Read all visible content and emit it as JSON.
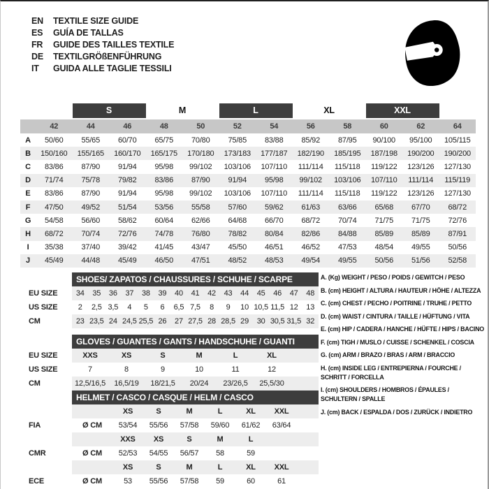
{
  "colors": {
    "dark": "#3d3d3d",
    "band": "#c7c7c7",
    "shade": "#ededed"
  },
  "header": {
    "languages": [
      {
        "code": "EN",
        "title": "TEXTILE SIZE GUIDE"
      },
      {
        "code": "ES",
        "title": "GUÍA DE TALLAS"
      },
      {
        "code": "FR",
        "title": "GUIDE DES TAILLES TEXTILE"
      },
      {
        "code": "DE",
        "title": "TEXTILGRÖßENFÜHRUNG"
      },
      {
        "code": "IT",
        "title": "GUIDA ALLE TAGLIE TESSILI"
      }
    ],
    "icon": "racing-helmet-icon"
  },
  "main_size_table": {
    "groups": [
      {
        "label": "S",
        "dark": true
      },
      {
        "label": "M",
        "dark": false
      },
      {
        "label": "L",
        "dark": true
      },
      {
        "label": "XL",
        "dark": false
      },
      {
        "label": "XXL",
        "dark": true
      }
    ],
    "sizes": [
      "42",
      "44",
      "46",
      "48",
      "50",
      "52",
      "54",
      "56",
      "58",
      "60",
      "62",
      "64"
    ],
    "rows": [
      {
        "label": "A",
        "values": [
          "50/60",
          "55/65",
          "60/70",
          "65/75",
          "70/80",
          "75/85",
          "83/88",
          "85/92",
          "87/95",
          "90/100",
          "95/100",
          "105/115"
        ]
      },
      {
        "label": "B",
        "values": [
          "150/160",
          "155/165",
          "160/170",
          "165/175",
          "170/180",
          "173/183",
          "177/187",
          "182/190",
          "185/195",
          "187/198",
          "190/200",
          "190/200"
        ]
      },
      {
        "label": "C",
        "values": [
          "83/86",
          "87/90",
          "91/94",
          "95/98",
          "99/102",
          "103/106",
          "107/110",
          "111/114",
          "115/118",
          "119/122",
          "123/126",
          "127/130"
        ]
      },
      {
        "label": "D",
        "values": [
          "71/74",
          "75/78",
          "79/82",
          "83/86",
          "87/90",
          "91/94",
          "95/98",
          "99/102",
          "103/106",
          "107/110",
          "111/114",
          "115/119"
        ]
      },
      {
        "label": "E",
        "values": [
          "83/86",
          "87/90",
          "91/94",
          "95/98",
          "99/102",
          "103/106",
          "107/110",
          "111/114",
          "115/118",
          "119/122",
          "123/126",
          "127/130"
        ]
      },
      {
        "label": "F",
        "values": [
          "47/50",
          "49/52",
          "51/54",
          "53/56",
          "55/58",
          "57/60",
          "59/62",
          "61/63",
          "63/66",
          "65/68",
          "67/70",
          "68/72"
        ]
      },
      {
        "label": "G",
        "values": [
          "54/58",
          "56/60",
          "58/62",
          "60/64",
          "62/66",
          "64/68",
          "66/70",
          "68/72",
          "70/74",
          "71/75",
          "71/75",
          "72/76"
        ]
      },
      {
        "label": "H",
        "values": [
          "68/72",
          "70/74",
          "72/76",
          "74/78",
          "76/80",
          "78/82",
          "80/84",
          "82/86",
          "84/88",
          "85/89",
          "85/89",
          "87/91"
        ]
      },
      {
        "label": "I",
        "values": [
          "35/38",
          "37/40",
          "39/42",
          "41/45",
          "43/47",
          "45/50",
          "46/51",
          "46/52",
          "47/53",
          "48/54",
          "49/55",
          "50/56"
        ]
      },
      {
        "label": "J",
        "values": [
          "45/49",
          "44/48",
          "45/49",
          "46/50",
          "47/51",
          "48/52",
          "48/53",
          "49/54",
          "49/55",
          "50/56",
          "51/56",
          "52/58"
        ]
      }
    ]
  },
  "shoes_table": {
    "title": "SHOES/ ZAPATOS / CHAUSSURES / SCHUHE / SCARPE",
    "rows": [
      {
        "label": "EU SIZE",
        "values": [
          "34",
          "35",
          "36",
          "37",
          "38",
          "39",
          "40",
          "41",
          "42",
          "43",
          "44",
          "45",
          "46",
          "47",
          "48"
        ]
      },
      {
        "label": "US SIZE",
        "values": [
          "2",
          "2,5",
          "3,5",
          "4",
          "5",
          "6",
          "6,5",
          "7,5",
          "8",
          "9",
          "10",
          "10,5",
          "11,5",
          "12",
          "13"
        ]
      },
      {
        "label": "CM",
        "values": [
          "23",
          "23,5",
          "24",
          "24,5",
          "25,5",
          "26",
          "27",
          "27,5",
          "28",
          "28,5",
          "29",
          "30",
          "30,5",
          "31,5",
          "32"
        ]
      }
    ]
  },
  "gloves_table": {
    "title": "GLOVES / GUANTES / GANTS / HANDSCHUHE / GUANTI",
    "rows": [
      {
        "label": "EU SIZE",
        "bold": true,
        "values": [
          "XXS",
          "XS",
          "S",
          "M",
          "L",
          "XL"
        ]
      },
      {
        "label": "US SIZE",
        "bold": false,
        "values": [
          "7",
          "8",
          "9",
          "10",
          "11",
          "12"
        ]
      },
      {
        "label": "CM",
        "bold": false,
        "values": [
          "12,5/16,5",
          "16,5/19",
          "18/21,5",
          "20/24",
          "23/26,5",
          "25,5/30"
        ]
      }
    ]
  },
  "helmet_table": {
    "title": "HELMET / CASCO / CASQUE / HELM / CASCO",
    "sections": [
      {
        "label": "FIA",
        "unit": "Ø CM",
        "sizes": [
          "XS",
          "S",
          "M",
          "L",
          "XL",
          "XXL"
        ],
        "values": [
          "53/54",
          "55/56",
          "57/58",
          "59/60",
          "61/62",
          "63/64"
        ]
      },
      {
        "label": "CMR",
        "unit": "Ø CM",
        "sizes": [
          "XXS",
          "XS",
          "S",
          "M",
          "L"
        ],
        "values": [
          "52/53",
          "54/55",
          "56/57",
          "58",
          "59"
        ]
      },
      {
        "label": "ECE",
        "unit": "Ø CM",
        "sizes": [
          "XS",
          "S",
          "M",
          "L",
          "XL",
          "XXL"
        ],
        "values": [
          "53",
          "55/56",
          "57/58",
          "59",
          "60",
          "61"
        ]
      }
    ]
  },
  "legend": {
    "items": [
      "A. (Kg) WEIGHT / PESO / POIDS / GEWITCH / PESO",
      "B. (cm) HEIGHT / ALTURA / HAUTEUR / HÖHE / ALTEZZA",
      "C. (cm) CHEST / PECHO / POITRINE / TRUHE / PETTO",
      "D. (cm) WAIST / CINTURA / TAILLE / HÜFTUNG / VITA",
      "E. (cm) HIP / CADERA / HANCHE / HÜFTE / HIPS / BACINO",
      "F. (cm) TIGH / MUSLO / CUISSE / SCHENKEL / COSCIA",
      "G. (cm) ARM / BRAZO / BRAS / ARM / BRACCIO",
      "H. (cm) INSIDE LEG / ENTREPIERNA / FOURCHE / SCHRITT / FORCELLA",
      "I. (cm) SHOULDERS / HOMBROS / ÉPAULES / SCHULTERN / SPALLE",
      "J. (cm) BACK / ESPALDA / DOS / ZURÜCK / INDIETRO"
    ]
  }
}
